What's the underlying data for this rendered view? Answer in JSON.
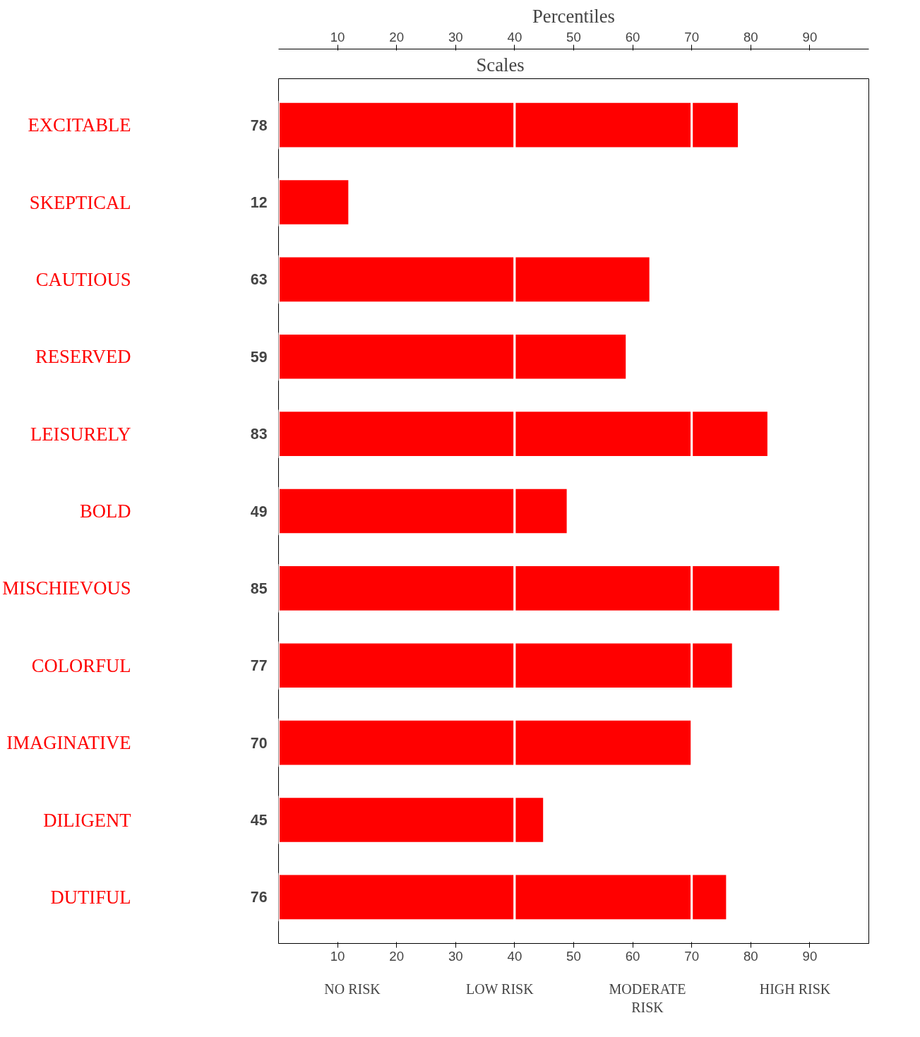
{
  "chart_data": {
    "type": "bar",
    "orientation": "horizontal",
    "stacked": true,
    "title": "Percentiles",
    "ylabel": "Scales",
    "categories": [
      "EXCITABLE",
      "SKEPTICAL",
      "CAUTIOUS",
      "RESERVED",
      "LEISURELY",
      "BOLD",
      "MISCHIEVOUS",
      "COLORFUL",
      "IMAGINATIVE",
      "DILIGENT",
      "DUTIFUL"
    ],
    "series": [
      {
        "color": "#ff0000",
        "values": [
          40,
          12,
          40,
          40,
          40,
          40,
          40,
          40,
          40,
          40,
          40
        ]
      },
      {
        "color": "#ff0000",
        "values": [
          30,
          null,
          23,
          19,
          30,
          9,
          30,
          30,
          30,
          5,
          30
        ]
      },
      {
        "color": "#ff0000",
        "values": [
          8,
          null,
          null,
          null,
          13,
          null,
          15,
          7,
          null,
          null,
          6
        ]
      }
    ],
    "totals": [
      "78",
      "12",
      "63",
      "59",
      "83",
      "49",
      "85",
      "77",
      "70",
      "45",
      "76"
    ],
    "xlim": [
      0,
      100
    ],
    "xticks": [
      10,
      20,
      30,
      40,
      50,
      60,
      70,
      80,
      90
    ],
    "x2lim": [
      0,
      100
    ],
    "x2ticks": [
      10,
      20,
      30,
      40,
      50,
      60,
      70,
      80,
      90
    ],
    "annotations": [
      "NO RISK",
      "LOW RISK",
      "MODERATE RISK",
      "HIGH RISK"
    ],
    "grid": false
  }
}
